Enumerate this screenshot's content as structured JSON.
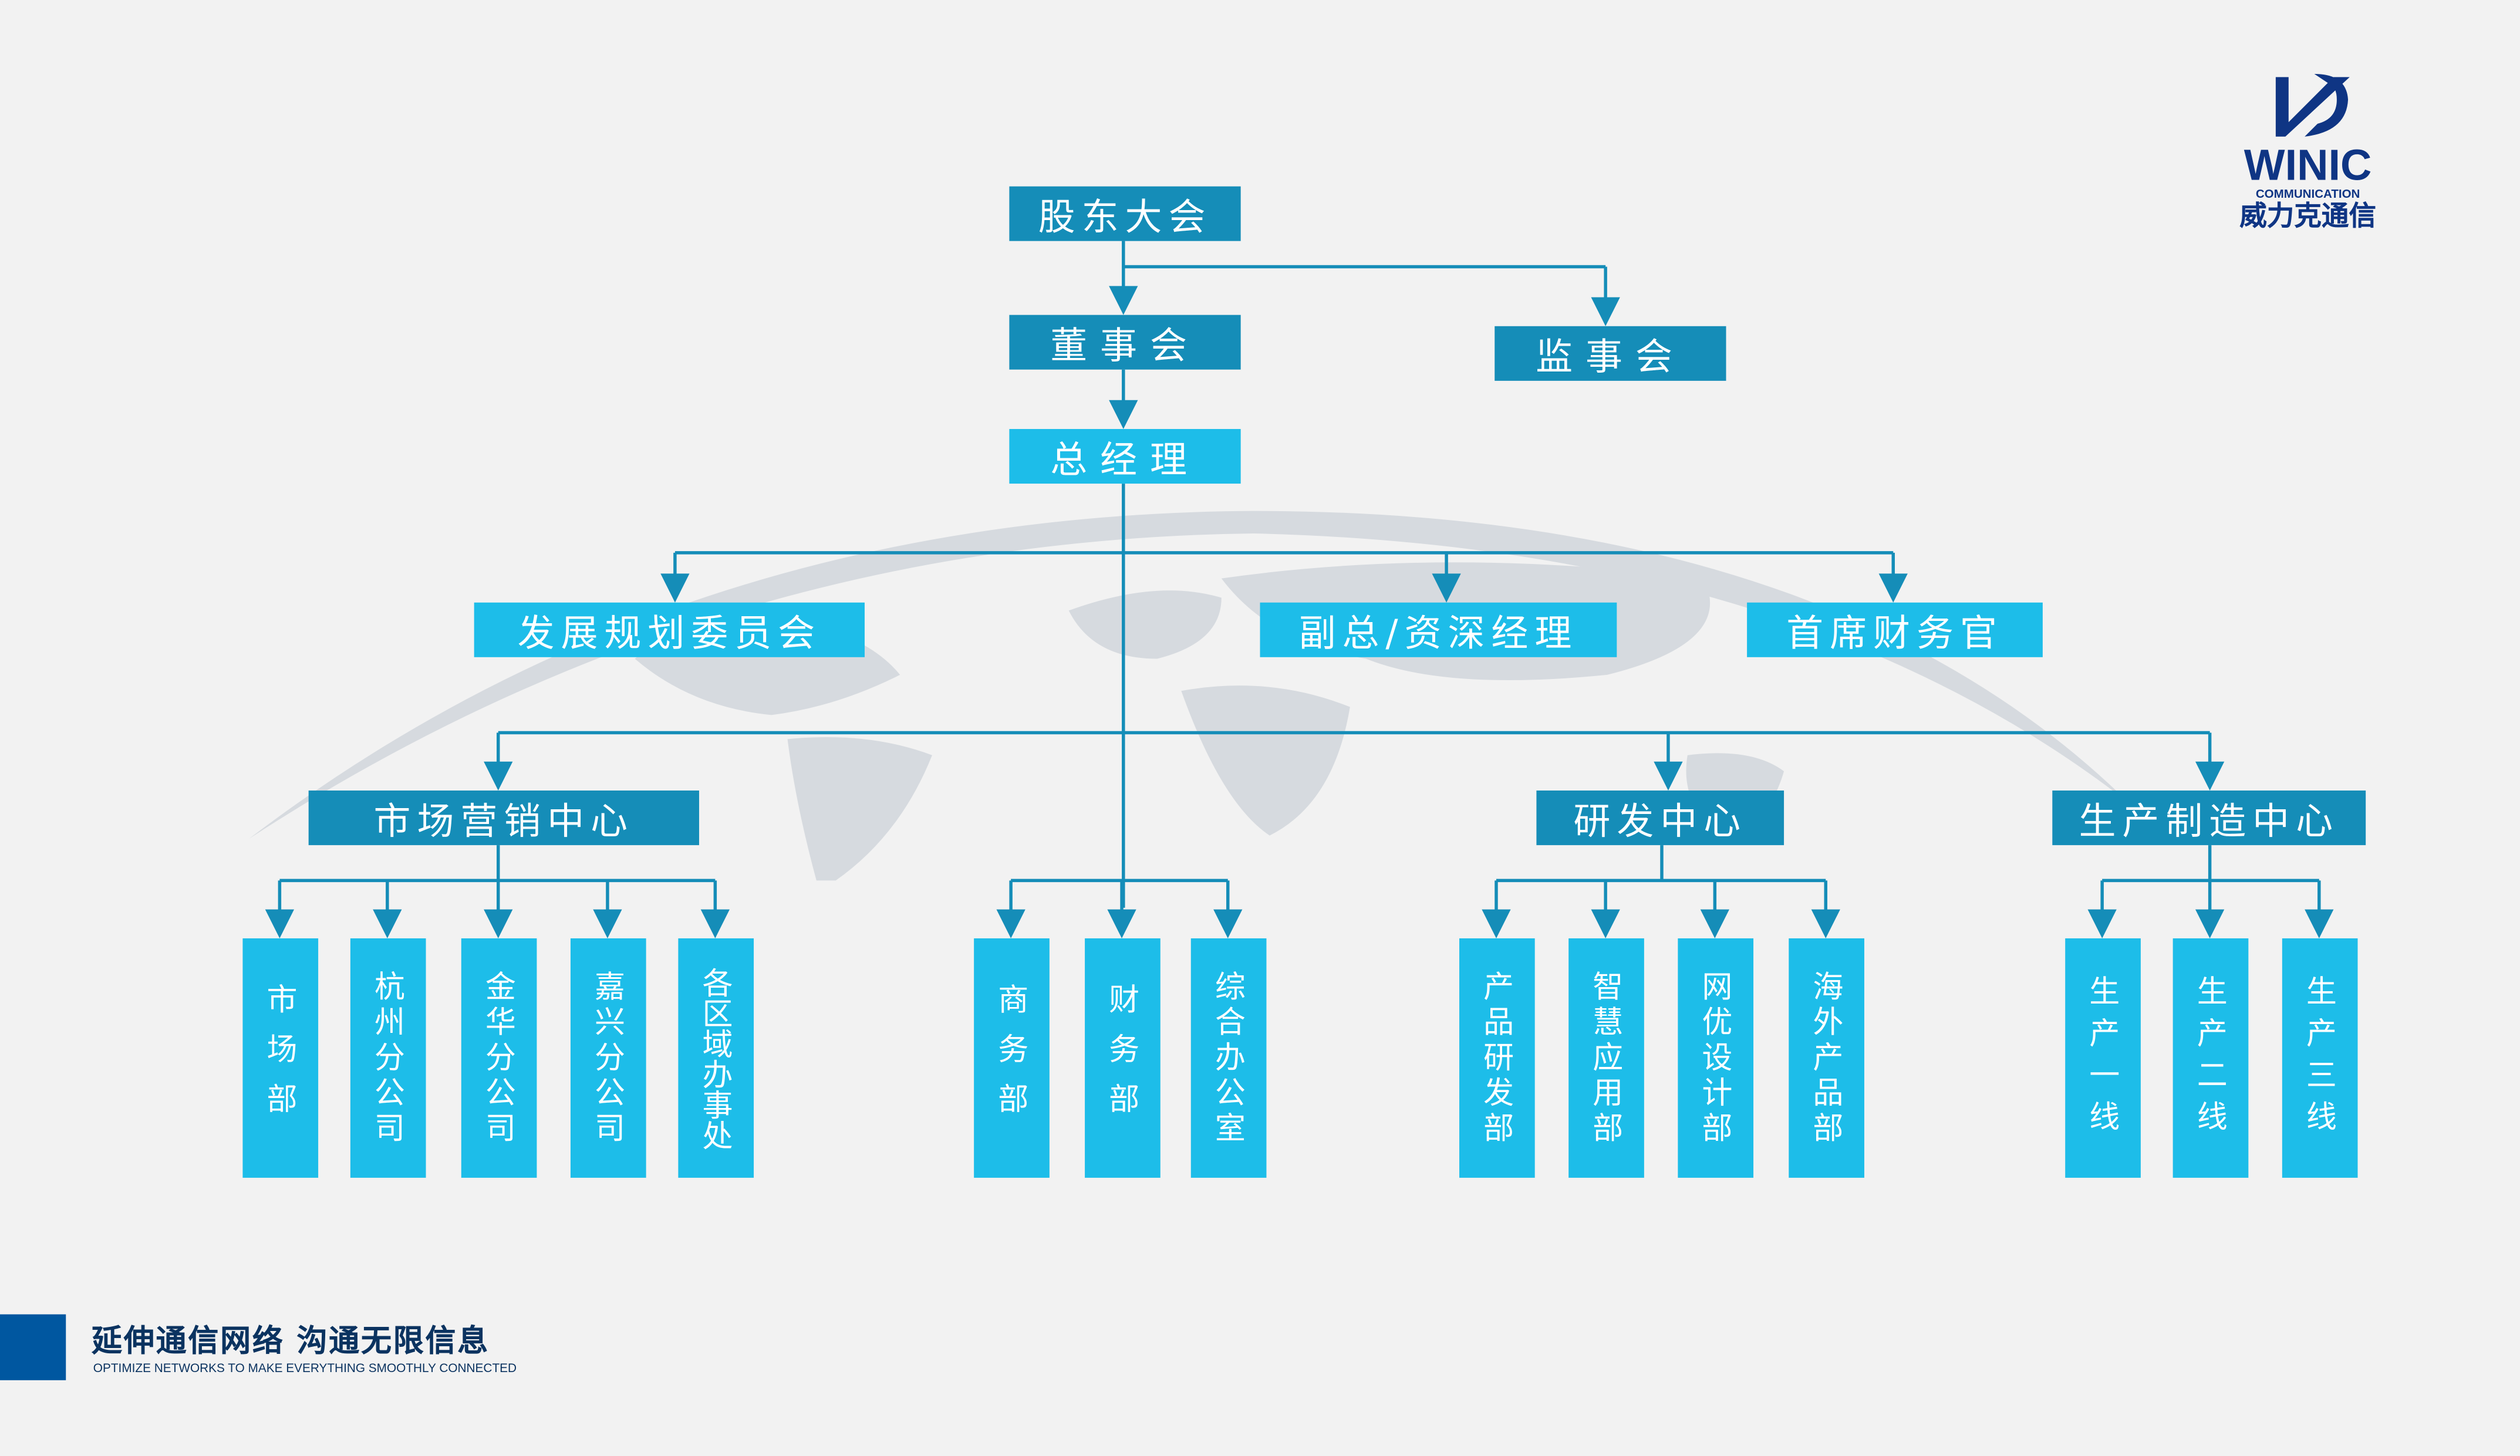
{
  "colors": {
    "dark_box": "#158db8",
    "light_box": "#1dbde9",
    "connector": "#158db8",
    "background": "#f2f2f2",
    "footer_accent": "#0057a0",
    "brand_navy": "#0f3584"
  },
  "logo": {
    "word": "WINIC",
    "sub": "COMMUNICATION",
    "cn": "威力克通信"
  },
  "org": {
    "shareholders": "股东大会",
    "board": "董事会",
    "supervisors": "监事会",
    "gm": "总经理",
    "level3": [
      "发展规划委员会",
      "副总/资深经理",
      "首席财务官"
    ],
    "centers": [
      "市场营销中心",
      "研发中心",
      "生产制造中心"
    ],
    "market_depts": [
      "市场部",
      "杭州分公司",
      "金华分公司",
      "嘉兴分公司",
      "各区域办事处"
    ],
    "direct_depts": [
      "商务部",
      "财务部",
      "综合办公室"
    ],
    "rd_depts": [
      "产品研发部",
      "智慧应用部",
      "网优设计部",
      "海外产品部"
    ],
    "prod_depts": [
      "生产一线",
      "生产二线",
      "生产三线"
    ]
  },
  "footer": {
    "slogan": "延伸通信网络 沟通无限信息",
    "tagline": "OPTIMIZE NETWORKS TO MAKE EVERYTHING SMOOTHLY CONNECTED"
  }
}
